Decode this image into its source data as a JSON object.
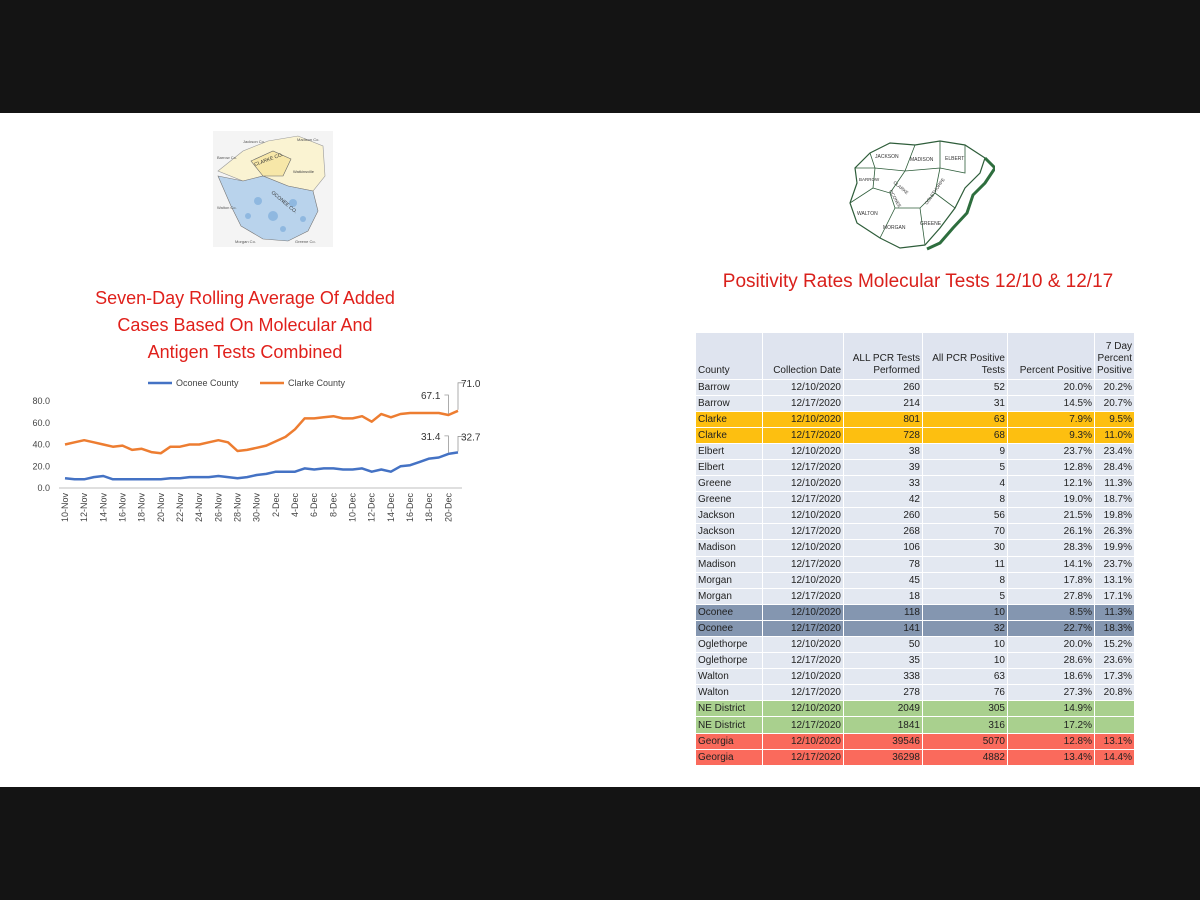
{
  "left": {
    "chart_title": "Seven-Day Rolling Average Of  Added\nCases Based On Molecular And\nAntigen Tests Combined",
    "map_labels": [
      "Jackson Co.",
      "Madison Co.",
      "Barrow Co.",
      "CLARKE CO.",
      "OCONEE CO.",
      "Watkinsville",
      "Walton Co.",
      "Morgan Co.",
      "Greene Co."
    ]
  },
  "right": {
    "map_labels": [
      "JACKSON",
      "MADISON",
      "ELBERT",
      "BARROW",
      "CLARKE",
      "OCONEE",
      "OGLETHORPE",
      "WALTON",
      "MORGAN",
      "GREENE"
    ],
    "table_title": "Positivity Rates Molecular Tests 12/10 & 12/17"
  },
  "chart_data": [
    {
      "type": "line",
      "title": "Seven-Day Rolling Average Of  Added Cases Based On Molecular And Antigen Tests Combined",
      "xlabel": "",
      "ylabel": "",
      "ylim": [
        0,
        80
      ],
      "yticks": [
        "0.0",
        "20.0",
        "40.0",
        "60.0",
        "80.0"
      ],
      "grid": false,
      "legend": "top",
      "x": [
        "10-Nov",
        "11-Nov",
        "12-Nov",
        "13-Nov",
        "14-Nov",
        "15-Nov",
        "16-Nov",
        "17-Nov",
        "18-Nov",
        "19-Nov",
        "20-Nov",
        "21-Nov",
        "22-Nov",
        "23-Nov",
        "24-Nov",
        "25-Nov",
        "26-Nov",
        "27-Nov",
        "28-Nov",
        "29-Nov",
        "30-Nov",
        "1-Dec",
        "2-Dec",
        "3-Dec",
        "4-Dec",
        "5-Dec",
        "6-Dec",
        "7-Dec",
        "8-Dec",
        "9-Dec",
        "10-Dec",
        "11-Dec",
        "12-Dec",
        "13-Dec",
        "14-Dec",
        "15-Dec",
        "16-Dec",
        "17-Dec",
        "18-Dec",
        "19-Dec",
        "20-Dec",
        "21-Dec"
      ],
      "xtick_labels": [
        "10-Nov",
        "12-Nov",
        "14-Nov",
        "16-Nov",
        "18-Nov",
        "20-Nov",
        "22-Nov",
        "24-Nov",
        "26-Nov",
        "28-Nov",
        "30-Nov",
        "2-Dec",
        "4-Dec",
        "6-Dec",
        "8-Dec",
        "10-Dec",
        "12-Dec",
        "14-Dec",
        "16-Dec",
        "18-Dec",
        "20-Dec"
      ],
      "series": [
        {
          "name": "Oconee County",
          "color": "#4472c4",
          "values": [
            9,
            8,
            8,
            10,
            11,
            8,
            8,
            8,
            8,
            8,
            8,
            9,
            9,
            10,
            10,
            10,
            11,
            10,
            9,
            10,
            12,
            13,
            15,
            15,
            15,
            18,
            17,
            18,
            18,
            17,
            17,
            18,
            15,
            17,
            15,
            20,
            21,
            24,
            27,
            28,
            31.4,
            32.7
          ]
        },
        {
          "name": "Clarke County",
          "color": "#ed7d31",
          "values": [
            40,
            42,
            44,
            42,
            40,
            38,
            39,
            35,
            36,
            33,
            32,
            38,
            38,
            40,
            40,
            42,
            44,
            42,
            34,
            35,
            37,
            39,
            43,
            47,
            54,
            64,
            64,
            65,
            66,
            64,
            64,
            66,
            61,
            68,
            65,
            68,
            69,
            69,
            69,
            69,
            67.1,
            71.0
          ]
        }
      ],
      "data_labels": [
        {
          "series": "Clarke County",
          "text": "67.1"
        },
        {
          "series": "Clarke County",
          "text": "71.0"
        },
        {
          "series": "Oconee County",
          "text": "31.4"
        },
        {
          "series": "Oconee County",
          "text": "32.7"
        }
      ]
    },
    {
      "type": "table",
      "title": "Positivity Rates Molecular Tests 12/10 & 12/17",
      "columns": [
        "County",
        "Collection Date",
        "ALL PCR Tests Performed",
        "All PCR Positive Tests",
        "Percent Positive",
        "7 Day Percent Positive"
      ],
      "rows": [
        {
          "cells": [
            "Barrow",
            "12/10/2020",
            "260",
            "52",
            "20.0%",
            "20.2%"
          ],
          "color": ""
        },
        {
          "cells": [
            "Barrow",
            "12/17/2020",
            "214",
            "31",
            "14.5%",
            "20.7%"
          ],
          "color": ""
        },
        {
          "cells": [
            "Clarke",
            "12/10/2020",
            "801",
            "63",
            "7.9%",
            "9.5%"
          ],
          "color": "#fdbf10"
        },
        {
          "cells": [
            "Clarke",
            "12/17/2020",
            "728",
            "68",
            "9.3%",
            "11.0%"
          ],
          "color": "#fdbf10"
        },
        {
          "cells": [
            "Elbert",
            "12/10/2020",
            "38",
            "9",
            "23.7%",
            "23.4%"
          ],
          "color": ""
        },
        {
          "cells": [
            "Elbert",
            "12/17/2020",
            "39",
            "5",
            "12.8%",
            "28.4%"
          ],
          "color": ""
        },
        {
          "cells": [
            "Greene",
            "12/10/2020",
            "33",
            "4",
            "12.1%",
            "11.3%"
          ],
          "color": ""
        },
        {
          "cells": [
            "Greene",
            "12/17/2020",
            "42",
            "8",
            "19.0%",
            "18.7%"
          ],
          "color": ""
        },
        {
          "cells": [
            "Jackson",
            "12/10/2020",
            "260",
            "56",
            "21.5%",
            "19.8%"
          ],
          "color": ""
        },
        {
          "cells": [
            "Jackson",
            "12/17/2020",
            "268",
            "70",
            "26.1%",
            "26.3%"
          ],
          "color": ""
        },
        {
          "cells": [
            "Madison",
            "12/10/2020",
            "106",
            "30",
            "28.3%",
            "19.9%"
          ],
          "color": ""
        },
        {
          "cells": [
            "Madison",
            "12/17/2020",
            "78",
            "11",
            "14.1%",
            "23.7%"
          ],
          "color": ""
        },
        {
          "cells": [
            "Morgan",
            "12/10/2020",
            "45",
            "8",
            "17.8%",
            "13.1%"
          ],
          "color": ""
        },
        {
          "cells": [
            "Morgan",
            "12/17/2020",
            "18",
            "5",
            "27.8%",
            "17.1%"
          ],
          "color": ""
        },
        {
          "cells": [
            "Oconee",
            "12/10/2020",
            "118",
            "10",
            "8.5%",
            "11.3%"
          ],
          "color": "#8496b0"
        },
        {
          "cells": [
            "Oconee",
            "12/17/2020",
            "141",
            "32",
            "22.7%",
            "18.3%"
          ],
          "color": "#8496b0"
        },
        {
          "cells": [
            "Oglethorpe",
            "12/10/2020",
            "50",
            "10",
            "20.0%",
            "15.2%"
          ],
          "color": ""
        },
        {
          "cells": [
            "Oglethorpe",
            "12/17/2020",
            "35",
            "10",
            "28.6%",
            "23.6%"
          ],
          "color": ""
        },
        {
          "cells": [
            "Walton",
            "12/10/2020",
            "338",
            "63",
            "18.6%",
            "17.3%"
          ],
          "color": ""
        },
        {
          "cells": [
            "Walton",
            "12/17/2020",
            "278",
            "76",
            "27.3%",
            "20.8%"
          ],
          "color": ""
        },
        {
          "cells": [
            "NE District",
            "12/10/2020",
            "2049",
            "305",
            "14.9%",
            ""
          ],
          "color": "#a9d08e"
        },
        {
          "cells": [
            "NE District",
            "12/17/2020",
            "1841",
            "316",
            "17.2%",
            ""
          ],
          "color": "#a9d08e"
        },
        {
          "cells": [
            "Georgia",
            "12/10/2020",
            "39546",
            "5070",
            "12.8%",
            "13.1%"
          ],
          "color": "#fa6a5c"
        },
        {
          "cells": [
            "Georgia",
            "12/17/2020",
            "36298",
            "4882",
            "13.4%",
            "14.4%"
          ],
          "color": "#fa6a5c"
        }
      ]
    }
  ]
}
